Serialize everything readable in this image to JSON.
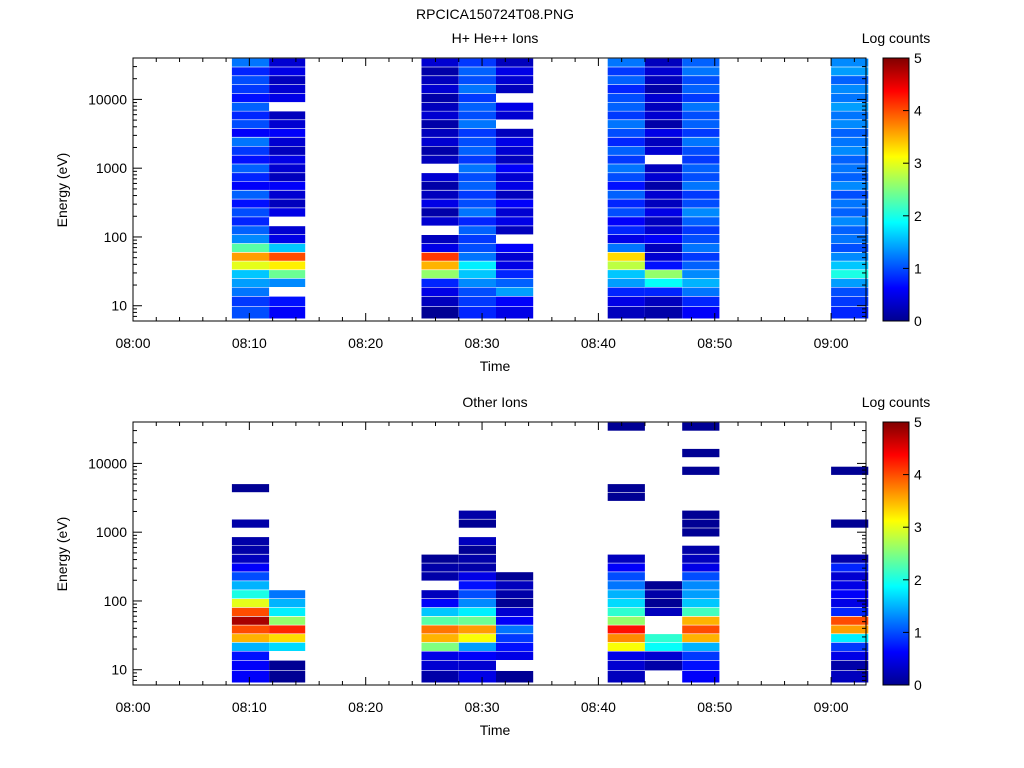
{
  "figure": {
    "title": "RPCICA150724T08.PNG"
  },
  "colorbar": {
    "label": "Log counts",
    "ticks": [
      "0",
      "1",
      "2",
      "3",
      "4",
      "5"
    ],
    "range": [
      0,
      5
    ],
    "colormap": "jet"
  },
  "chart_data": [
    {
      "type": "heatmap",
      "title": "H+ He++ Ions",
      "xlabel": "Time",
      "ylabel": "Energy (eV)",
      "yscale": "log",
      "xlim": [
        "08:00",
        "09:03"
      ],
      "ylim": [
        6,
        40000
      ],
      "xticks": [
        "08:00",
        "08:10",
        "08:20",
        "08:30",
        "08:40",
        "08:50",
        "09:00"
      ],
      "yticks": [
        "10",
        "100",
        "1000",
        "10000"
      ],
      "energy_bins_eV": [
        8,
        12,
        16,
        22,
        29,
        39,
        52,
        70,
        94,
        126,
        170,
        230,
        310,
        415,
        560,
        750,
        1000,
        1350,
        1800,
        2450,
        3300,
        4400,
        5900,
        7900,
        10600,
        14300,
        19200,
        25800,
        34600
      ],
      "columns": [
        {
          "start": "08:08.5",
          "end": "08:11.7",
          "log_counts": [
            1.0,
            0.9,
            1.2,
            1.4,
            1.6,
            3.0,
            3.6,
            2.3,
            1.3,
            1.1,
            0.8,
            1.0,
            0.7,
            1.1,
            0.6,
            0.8,
            1.1,
            0.7,
            0.9,
            1.2,
            0.6,
            1.0,
            0.8,
            1.1,
            0.7,
            0.9,
            1.0,
            0.8,
            1.2
          ]
        },
        {
          "start": "08:11.7",
          "end": "08:14.8",
          "log_counts": [
            0.6,
            0.7,
            null,
            1.3,
            2.4,
            3.2,
            4.0,
            1.6,
            0.5,
            0.4,
            null,
            0.5,
            0.3,
            0.4,
            0.6,
            0.3,
            0.4,
            0.5,
            0.3,
            0.4,
            0.6,
            0.4,
            0.3,
            null,
            0.5,
            0.4,
            0.3,
            0.5,
            0.4
          ]
        },
        {
          "start": "08:24.8",
          "end": "08:28.0",
          "log_counts": [
            0.1,
            0.3,
            0.5,
            0.8,
            2.6,
            3.5,
            4.1,
            0.5,
            0.3,
            null,
            0.4,
            0.2,
            0.5,
            0.3,
            0.2,
            0.4,
            null,
            0.3,
            0.2,
            0.4,
            0.3,
            0.2,
            0.4,
            0.3,
            0.2,
            0.4,
            0.3,
            0.2,
            0.4
          ]
        },
        {
          "start": "08:28.0",
          "end": "08:31.2",
          "log_counts": [
            0.8,
            0.9,
            1.0,
            1.3,
            1.6,
            1.8,
            1.2,
            1.0,
            0.9,
            1.1,
            0.8,
            1.2,
            1.0,
            0.9,
            1.1,
            1.0,
            1.2,
            0.9,
            1.1,
            1.0,
            0.9,
            1.2,
            1.0,
            1.1,
            0.9,
            1.2,
            1.0,
            1.1,
            0.9
          ]
        },
        {
          "start": "08:31.2",
          "end": "08:34.4",
          "log_counts": [
            0.5,
            0.6,
            1.4,
            1.1,
            0.8,
            0.5,
            0.4,
            0.6,
            null,
            0.3,
            0.5,
            0.4,
            0.6,
            0.3,
            0.5,
            0.4,
            0.6,
            0.3,
            0.4,
            0.5,
            0.3,
            null,
            0.4,
            0.5,
            null,
            0.3,
            0.4,
            0.5,
            0.3
          ]
        },
        {
          "start": "08:40.8",
          "end": "08:44.0",
          "log_counts": [
            0.3,
            0.5,
            0.8,
            1.4,
            1.6,
            2.8,
            3.3,
            1.2,
            0.5,
            0.8,
            0.6,
            1.0,
            0.8,
            1.1,
            0.7,
            1.0,
            1.2,
            0.9,
            1.1,
            0.8,
            1.0,
            1.2,
            0.9,
            1.1,
            1.0,
            0.8,
            1.1,
            0.9,
            1.2
          ]
        },
        {
          "start": "08:44.0",
          "end": "08:47.2",
          "log_counts": [
            0.2,
            0.3,
            0.8,
            1.9,
            2.6,
            0.7,
            0.4,
            0.3,
            0.6,
            0.4,
            0.3,
            0.5,
            0.3,
            0.4,
            0.2,
            0.4,
            0.3,
            null,
            0.4,
            0.3,
            0.5,
            0.2,
            0.4,
            0.3,
            0.4,
            0.2,
            0.3,
            0.4,
            0.3
          ]
        },
        {
          "start": "08:47.2",
          "end": "08:50.4",
          "log_counts": [
            0.6,
            0.8,
            1.2,
            1.5,
            1.3,
            1.1,
            0.9,
            1.2,
            1.0,
            0.9,
            1.1,
            1.3,
            1.0,
            0.9,
            1.2,
            1.0,
            1.1,
            0.9,
            1.0,
            1.2,
            0.9,
            1.1,
            1.0,
            1.2,
            0.9,
            1.1,
            1.0,
            1.2,
            1.1
          ]
        },
        {
          "start": "09:00.0",
          "end": "09:03.2",
          "log_counts": [
            0.8,
            0.9,
            1.0,
            1.4,
            2.0,
            1.6,
            1.3,
            1.0,
            1.2,
            1.1,
            1.3,
            1.1,
            1.2,
            1.0,
            1.3,
            1.1,
            1.2,
            1.1,
            1.3,
            1.2,
            1.1,
            1.3,
            1.2,
            1.4,
            1.2,
            1.3,
            1.1,
            1.4,
            1.3
          ]
        }
      ]
    },
    {
      "type": "heatmap",
      "title": "Other Ions",
      "xlabel": "Time",
      "ylabel": "Energy (eV)",
      "yscale": "log",
      "xlim": [
        "08:00",
        "09:03"
      ],
      "ylim": [
        6,
        40000
      ],
      "xticks": [
        "08:00",
        "08:10",
        "08:20",
        "08:30",
        "08:40",
        "08:50",
        "09:00"
      ],
      "yticks": [
        "10",
        "100",
        "1000",
        "10000"
      ],
      "energy_bins_eV": [
        8,
        12,
        16,
        22,
        29,
        39,
        52,
        70,
        94,
        126,
        170,
        230,
        310,
        415,
        560,
        750,
        1000,
        1350,
        1800,
        2450,
        3300,
        4400,
        5900,
        7900,
        10600,
        14300,
        19200,
        25800,
        34600
      ],
      "columns": [
        {
          "start": "08:08.5",
          "end": "08:11.7",
          "log_counts": [
            0.6,
            0.6,
            0.7,
            1.5,
            3.5,
            4.0,
            4.8,
            4.0,
            3.0,
            2.0,
            1.5,
            1.0,
            0.6,
            0.3,
            0.2,
            0.2,
            null,
            0.2,
            null,
            null,
            null,
            0.1,
            null,
            null,
            null,
            null,
            null,
            null,
            null
          ]
        },
        {
          "start": "08:11.7",
          "end": "08:14.8",
          "log_counts": [
            0.1,
            0.1,
            null,
            1.7,
            3.3,
            4.2,
            2.6,
            1.8,
            1.5,
            1.2,
            null,
            null,
            null,
            null,
            null,
            null,
            null,
            null,
            null,
            null,
            null,
            null,
            null,
            null,
            null,
            null,
            null,
            null,
            null
          ]
        },
        {
          "start": "08:24.8",
          "end": "08:28.0",
          "log_counts": [
            0.2,
            0.4,
            0.5,
            2.5,
            3.5,
            3.8,
            2.3,
            1.6,
            0.6,
            0.3,
            null,
            0.2,
            0.2,
            0.1,
            null,
            null,
            null,
            null,
            null,
            null,
            null,
            null,
            null,
            null,
            null,
            null,
            null,
            null,
            null
          ]
        },
        {
          "start": "08:28.0",
          "end": "08:31.2",
          "log_counts": [
            0.5,
            0.4,
            0.6,
            1.4,
            3.1,
            3.6,
            2.4,
            1.8,
            1.3,
            1.0,
            0.7,
            0.5,
            0.2,
            0.2,
            0.1,
            0.3,
            null,
            0.1,
            0.2,
            null,
            null,
            null,
            null,
            null,
            null,
            null,
            null,
            null,
            null
          ]
        },
        {
          "start": "08:31.2",
          "end": "08:34.4",
          "log_counts": [
            0.1,
            null,
            0.5,
            0.7,
            0.9,
            1.2,
            0.6,
            0.4,
            0.1,
            0.2,
            0.3,
            0.1,
            null,
            null,
            null,
            null,
            null,
            null,
            null,
            null,
            null,
            null,
            null,
            null,
            null,
            null,
            null,
            null,
            null
          ]
        },
        {
          "start": "08:40.8",
          "end": "08:44.0",
          "log_counts": [
            0.3,
            0.4,
            0.5,
            3.1,
            3.7,
            4.3,
            2.6,
            2.1,
            1.7,
            1.5,
            1.2,
            1.0,
            0.6,
            0.3,
            null,
            null,
            null,
            null,
            null,
            null,
            0.1,
            0.1,
            null,
            null,
            null,
            null,
            null,
            null,
            0.1
          ]
        },
        {
          "start": "08:44.0",
          "end": "08:47.2",
          "log_counts": [
            null,
            0.2,
            0.4,
            1.9,
            2.1,
            null,
            null,
            0.3,
            0.1,
            0.2,
            0.1,
            null,
            null,
            null,
            null,
            null,
            null,
            null,
            null,
            null,
            null,
            null,
            null,
            null,
            null,
            null,
            null,
            null,
            null
          ]
        },
        {
          "start": "08:47.2",
          "end": "08:50.4",
          "log_counts": [
            0.6,
            0.7,
            0.9,
            1.5,
            3.5,
            4.0,
            3.5,
            2.2,
            1.6,
            1.4,
            1.3,
            1.0,
            0.5,
            0.3,
            0.2,
            null,
            0.1,
            0.1,
            0.1,
            null,
            null,
            null,
            null,
            0.1,
            null,
            0.1,
            null,
            null,
            0.1
          ]
        },
        {
          "start": "09:00.0",
          "end": "09:03.2",
          "log_counts": [
            0.3,
            0.2,
            0.5,
            0.9,
            1.8,
            3.6,
            4.0,
            0.8,
            0.5,
            0.6,
            0.5,
            0.4,
            0.8,
            0.2,
            null,
            null,
            null,
            0.1,
            null,
            null,
            null,
            null,
            null,
            0.1,
            null,
            null,
            null,
            null,
            null
          ]
        }
      ]
    }
  ]
}
